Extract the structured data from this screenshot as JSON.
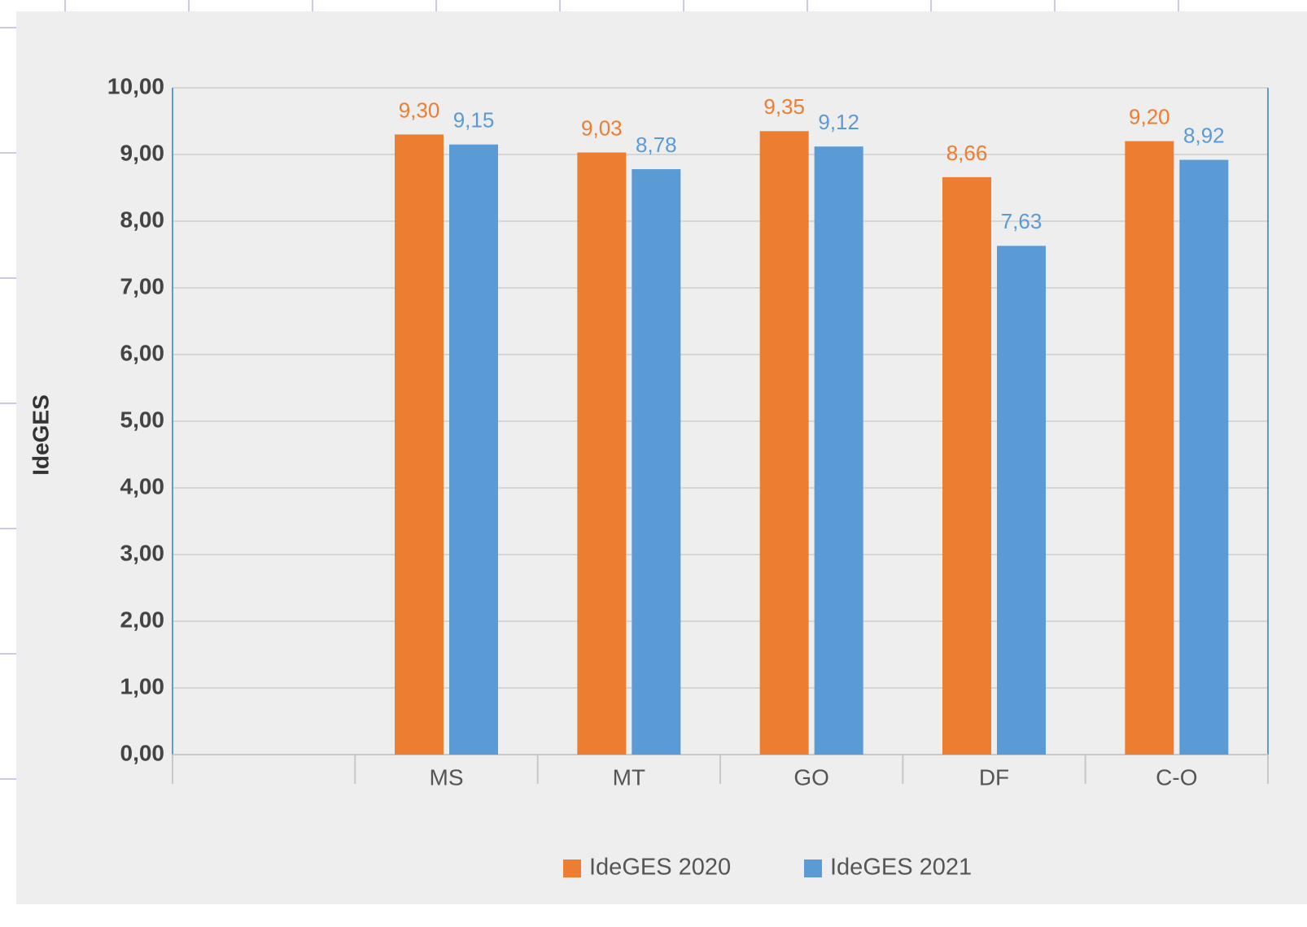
{
  "chart_data": {
    "type": "bar",
    "y_label": "IdeGES",
    "categories": [
      null,
      "MS",
      "MT",
      "GO",
      "DF",
      "C-O"
    ],
    "series": [
      {
        "name": "IdeGES 2020",
        "color": "#ed7d31",
        "values": [
          null,
          9.3,
          9.03,
          9.35,
          8.66,
          9.2
        ],
        "value_labels": [
          null,
          "9,30",
          "9,03",
          "9,35",
          "8,66",
          "9,20"
        ]
      },
      {
        "name": "IdeGES 2021",
        "color": "#5b9bd5",
        "values": [
          null,
          9.15,
          8.78,
          9.12,
          7.63,
          8.92
        ],
        "value_labels": [
          null,
          "9,15",
          "8,78",
          "9,12",
          "7,63",
          "8,92"
        ]
      }
    ],
    "ylim": [
      0,
      10
    ],
    "yticks": [
      {
        "value": 0,
        "label": "0,00"
      },
      {
        "value": 1,
        "label": "1,00"
      },
      {
        "value": 2,
        "label": "2,00"
      },
      {
        "value": 3,
        "label": "3,00"
      },
      {
        "value": 4,
        "label": "4,00"
      },
      {
        "value": 5,
        "label": "5,00"
      },
      {
        "value": 6,
        "label": "6,00"
      },
      {
        "value": 7,
        "label": "7,00"
      },
      {
        "value": 8,
        "label": "8,00"
      },
      {
        "value": 9,
        "label": "9,00"
      },
      {
        "value": 10,
        "label": "10,00"
      }
    ],
    "grid": true,
    "legend": "bottom"
  }
}
